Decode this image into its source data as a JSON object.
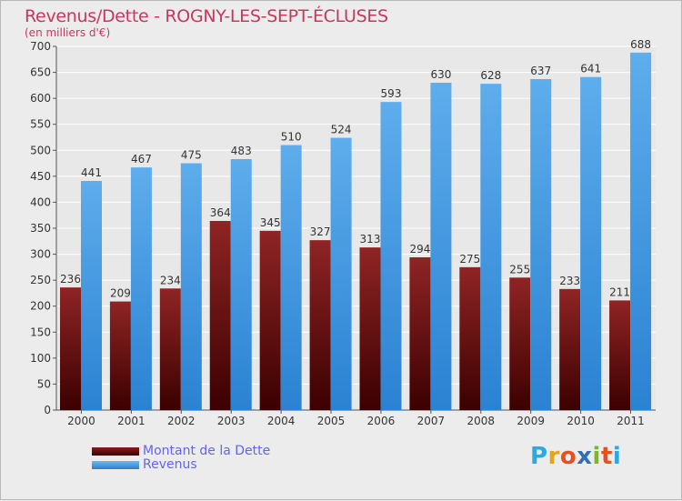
{
  "chart_data": {
    "type": "bar",
    "title": "Revenus/Dette - ROGNY-LES-SEPT-ÉCLUSES",
    "subtitle": "(en milliers d'€)",
    "categories": [
      "2000",
      "2001",
      "2002",
      "2003",
      "2004",
      "2005",
      "2006",
      "2007",
      "2008",
      "2009",
      "2010",
      "2011"
    ],
    "series": [
      {
        "name": "Montant de la Dette",
        "color": "#6e1212",
        "values": [
          236,
          209,
          234,
          364,
          345,
          327,
          313,
          294,
          275,
          255,
          233,
          211
        ]
      },
      {
        "name": "Revenus",
        "color": "#3f9be6",
        "values": [
          441,
          467,
          475,
          483,
          510,
          524,
          593,
          630,
          628,
          637,
          641,
          688
        ]
      }
    ],
    "ylim": [
      0,
      700
    ],
    "yticks": [
      0,
      50,
      100,
      150,
      200,
      250,
      300,
      350,
      400,
      450,
      500,
      550,
      600,
      650,
      700
    ],
    "grid": true,
    "legend": "bottom-left"
  },
  "brand": {
    "letters": [
      "P",
      "r",
      "o",
      "x",
      "i",
      "t",
      "i"
    ],
    "colors": [
      "#2fa7e0",
      "#e8a417",
      "#e94e1b",
      "#2f6fb6",
      "#7bb72a",
      "#e94e1b",
      "#2fa7e0"
    ]
  }
}
